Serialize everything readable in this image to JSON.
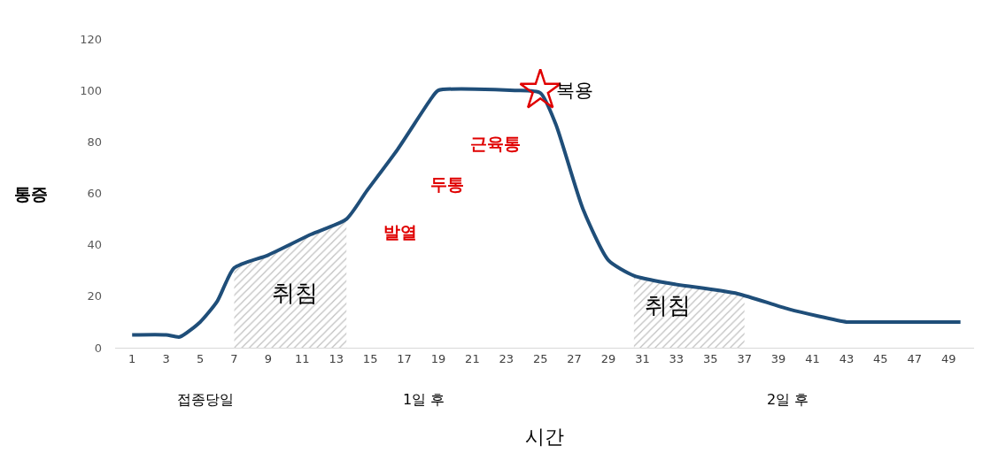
{
  "chart_data": {
    "type": "line",
    "xlabel": "시간",
    "ylabel": "통증",
    "xlim": [
      0,
      50.5
    ],
    "xticks": [
      1,
      3,
      5,
      7,
      9,
      11,
      13,
      15,
      17,
      19,
      21,
      23,
      25,
      27,
      29,
      31,
      33,
      35,
      37,
      39,
      41,
      43,
      45,
      47,
      49
    ],
    "ylim": [
      0,
      120
    ],
    "yticks": [
      0,
      20,
      40,
      60,
      80,
      100,
      120
    ],
    "grid": false,
    "series": [
      {
        "type": "area",
        "color": "#808080",
        "x": [
          7,
          9,
          11.5,
          13.6
        ],
        "values": [
          31,
          36,
          44,
          50
        ]
      },
      {
        "type": "area",
        "color": "#808080",
        "x": [
          30.5,
          32.6,
          36.6,
          37
        ],
        "values": [
          28,
          25,
          21,
          20.5
        ]
      },
      {
        "color": "#1f4e79",
        "x": [
          1,
          3,
          3.8,
          5,
          6,
          7,
          9,
          11.5,
          13.6,
          14.8,
          16.6,
          18.6,
          19,
          23.5,
          25,
          25.9,
          27.5,
          29,
          30.5,
          32.6,
          36.6,
          39.6,
          43,
          43.8,
          49.7
        ],
        "values": [
          5,
          5,
          4.2,
          10,
          18,
          31,
          36,
          44,
          50,
          61,
          77,
          97,
          100,
          100,
          99,
          87,
          54,
          34,
          28,
          25,
          21,
          15,
          10,
          10,
          10
        ]
      },
      {
        "type": "scatter",
        "color": "#e00000",
        "marker": "star",
        "x": [
          25
        ],
        "values": [
          100
        ]
      }
    ],
    "annotations": [
      {
        "text": "복용",
        "x": 25,
        "y": 100
      },
      "근육통",
      "두통",
      "발열",
      "취침",
      "취침",
      "접종당일",
      "1일 후",
      "2일 후"
    ]
  }
}
